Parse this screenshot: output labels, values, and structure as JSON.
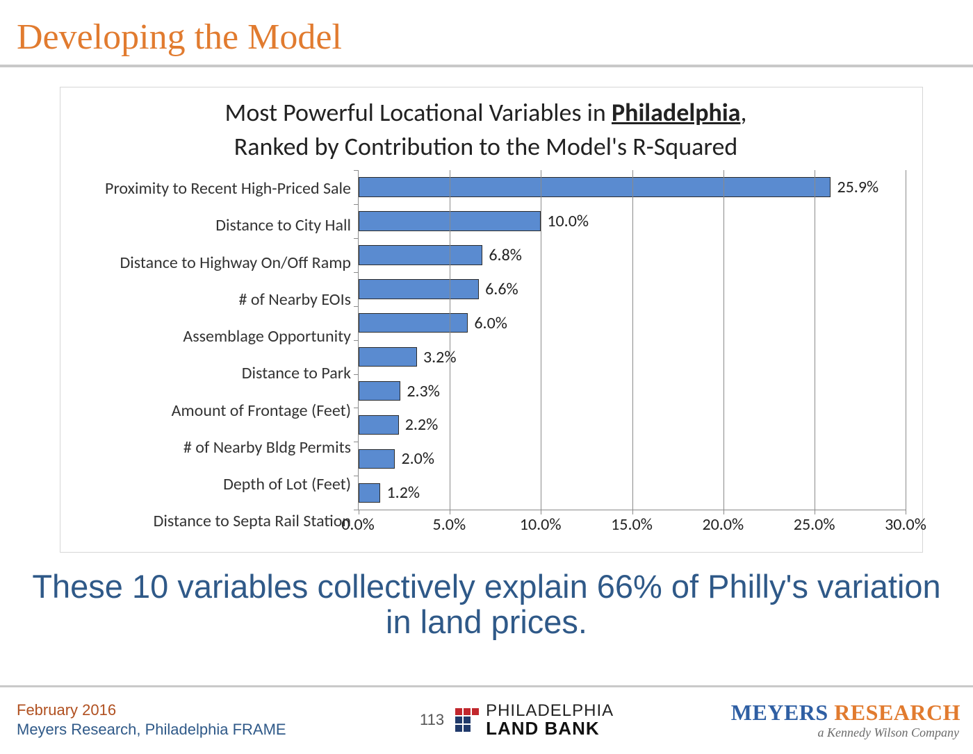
{
  "slide_title": "Developing the Model",
  "chart": {
    "type": "bar-horizontal",
    "title_pre": "Most Powerful Locational Variables in ",
    "title_bold": "Philadelphia",
    "title_post": ",",
    "title_line2": "Ranked by Contribution to the Model's R-Squared",
    "categories": [
      "Proximity to Recent High-Priced Sale",
      "Distance to City Hall",
      "Distance to Highway On/Off Ramp",
      "# of Nearby EOIs",
      "Assemblage Opportunity",
      "Distance to Park",
      "Amount of Frontage (Feet)",
      "# of Nearby Bldg Permits",
      "Depth of Lot (Feet)",
      "Distance to Septa Rail Station"
    ],
    "values": [
      25.9,
      10.0,
      6.8,
      6.6,
      6.0,
      3.2,
      2.3,
      2.2,
      2.0,
      1.2
    ],
    "value_labels": [
      "25.9%",
      "10.0%",
      "6.8%",
      "6.6%",
      "6.0%",
      "3.2%",
      "2.3%",
      "2.2%",
      "2.0%",
      "1.2%"
    ],
    "bar_color": "#5a8bd0",
    "bar_border_color": "#2b2b2b",
    "grid_color": "#8a8a8a",
    "background_color": "#ffffff",
    "xlim": [
      0,
      30
    ],
    "xtick_step": 5,
    "xtick_labels": [
      "0.0%",
      "5.0%",
      "10.0%",
      "15.0%",
      "20.0%",
      "25.0%",
      "30.0%"
    ],
    "title_fontsize": 36,
    "label_fontsize": 24,
    "tick_fontsize": 24,
    "value_label_fontsize": 24
  },
  "summary": "These 10 variables collectively explain 66% of Philly's variation in land prices.",
  "footer": {
    "date": "February 2016",
    "org": "Meyers Research, Philadelphia FRAME",
    "page": "113",
    "landbank_l1": "PHILADELPHIA",
    "landbank_l2": "LAND BANK",
    "meyers_a": "M",
    "meyers_b": "EYERS ",
    "meyers_c": "R",
    "meyers_d": "ESEARCH",
    "meyers_sub": "a Kennedy Wilson Company"
  }
}
